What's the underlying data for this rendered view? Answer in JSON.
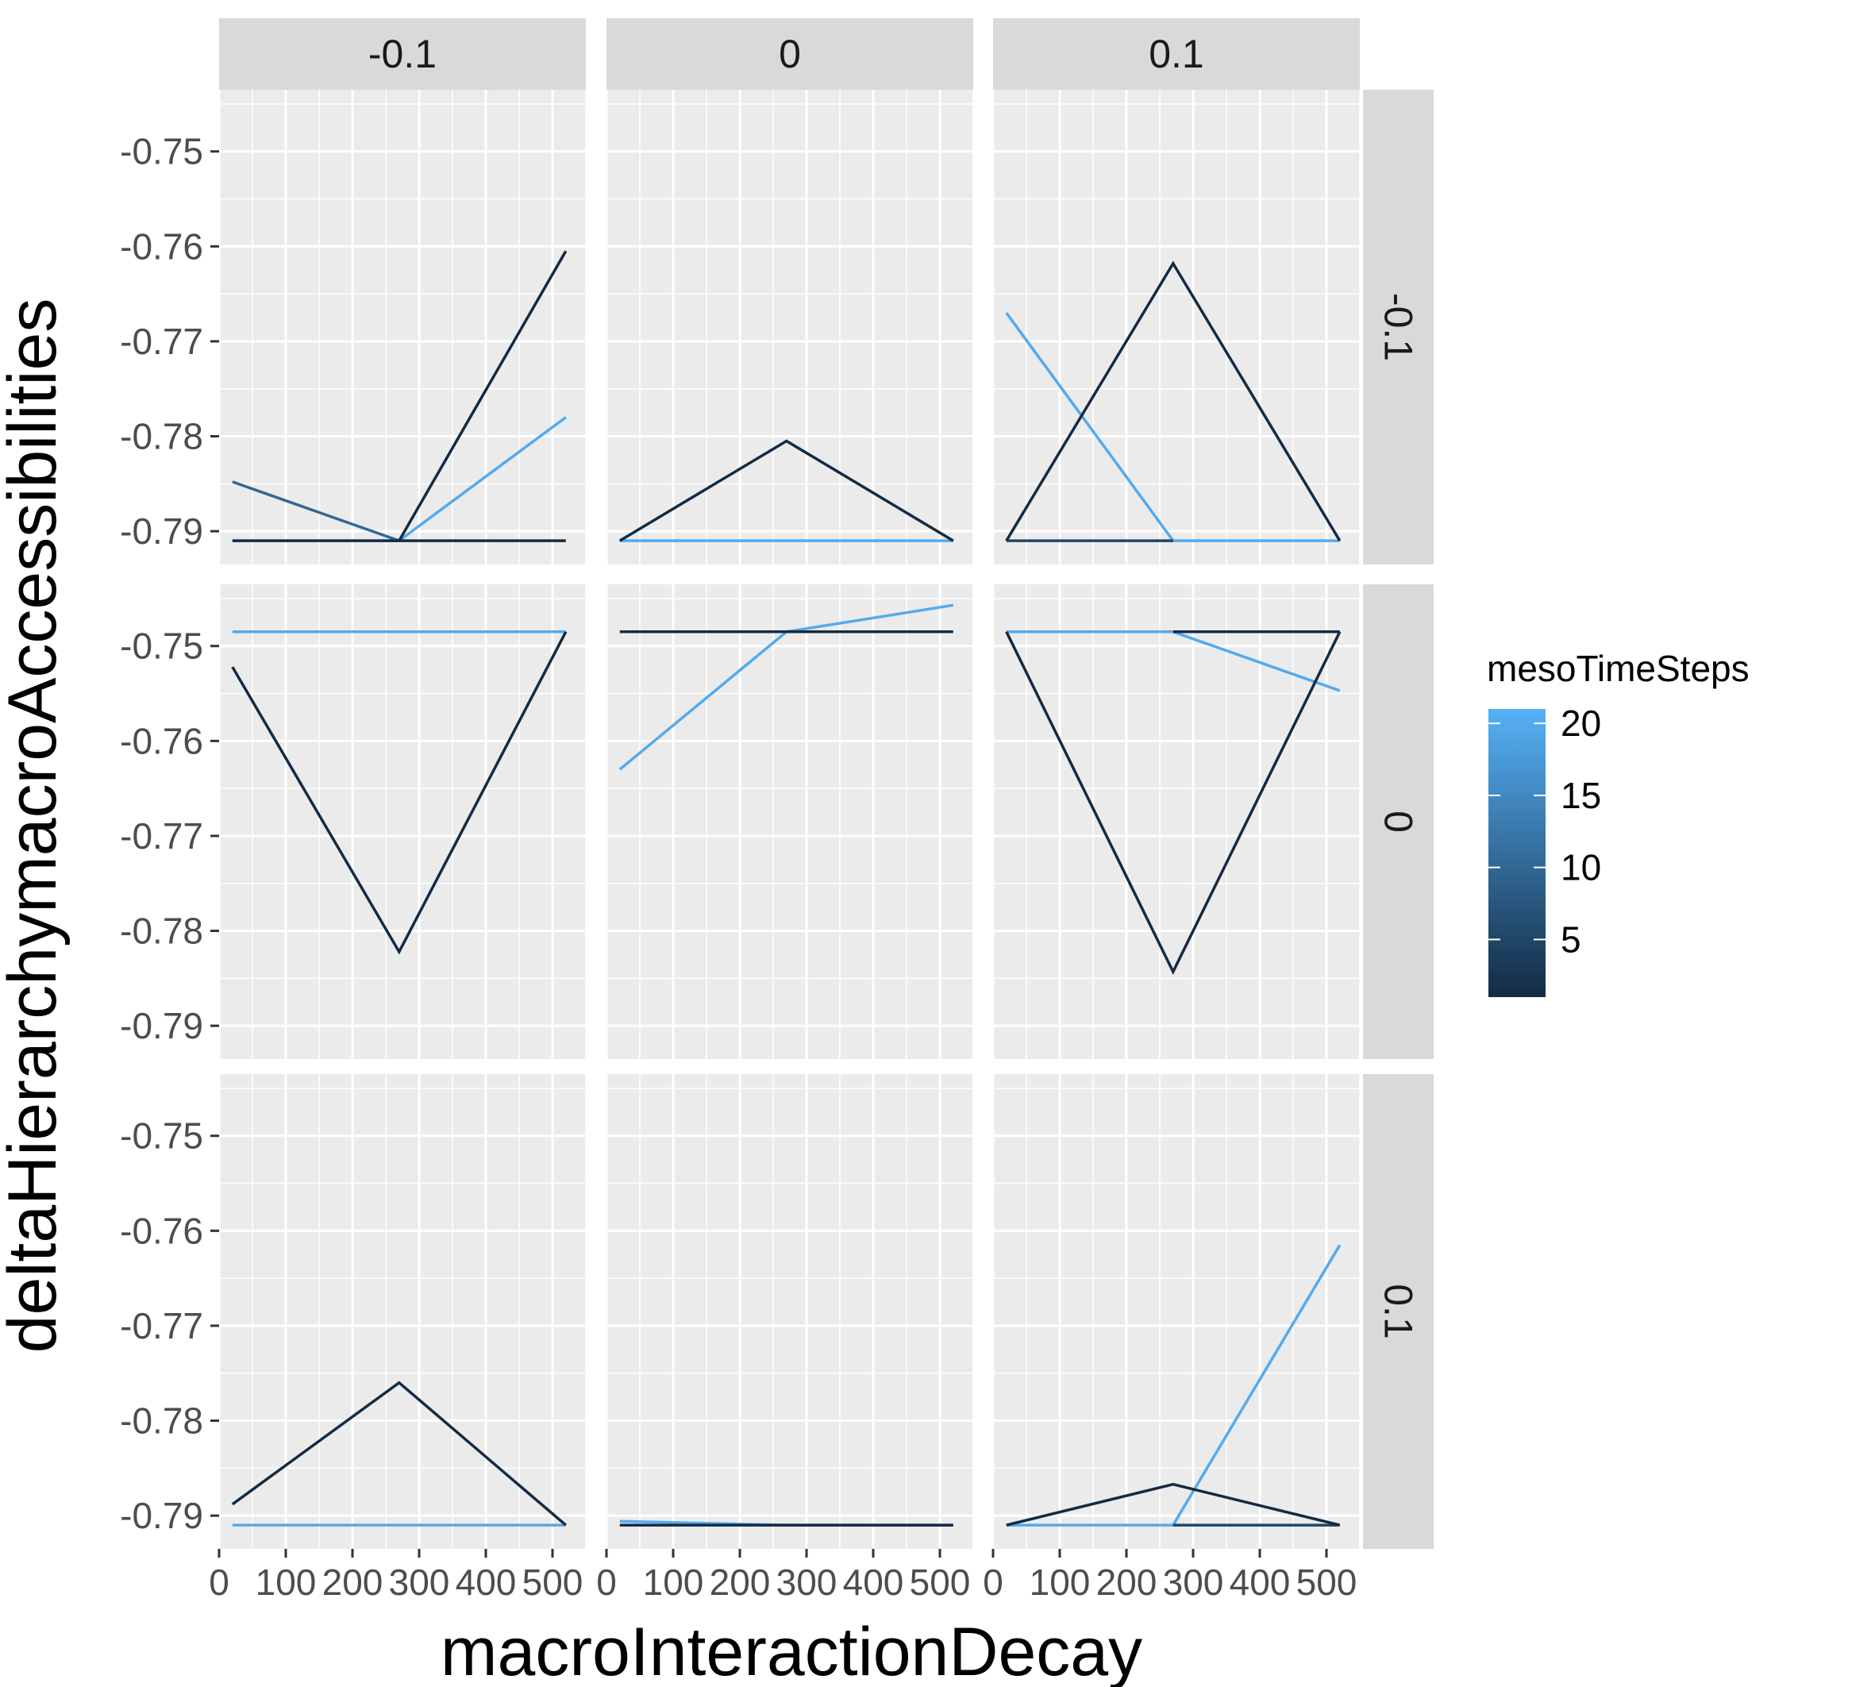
{
  "chart_data": {
    "type": "line",
    "title": "",
    "xlabel": "macroInteractionDecay",
    "ylabel": "deltaHierarchymacroAccessibilities",
    "facet_cols": [
      "-0.1",
      "0",
      "0.1"
    ],
    "facet_rows": [
      "-0.1",
      "0",
      "0.1"
    ],
    "xlim": [
      0,
      550
    ],
    "ylim": [
      -0.7935,
      -0.7435
    ],
    "x_ticks": [
      0,
      100,
      200,
      300,
      400,
      500
    ],
    "x_tick_labels": [
      "0",
      "100",
      "200",
      "300",
      "400",
      "500"
    ],
    "y_ticks": [
      -0.75,
      -0.76,
      -0.77,
      -0.78,
      -0.79
    ],
    "y_tick_labels": [
      "-0.75",
      "-0.76",
      "-0.77",
      "-0.78",
      "-0.79"
    ],
    "grid": true,
    "legend": {
      "title": "mesoTimeSteps",
      "position": "right",
      "type": "colorbar",
      "range": [
        1,
        21
      ],
      "ticks": [
        5,
        10,
        15,
        20
      ],
      "tick_labels": [
        "5",
        "10",
        "15",
        "20"
      ],
      "color_low": "#132B43",
      "color_high": "#56B1F7"
    },
    "panels": [
      {
        "row": "-0.1",
        "col": "-0.1",
        "series": [
          {
            "meso": 1,
            "x": [
              20,
              270,
              520
            ],
            "y": [
              -0.791,
              -0.791,
              -0.791
            ]
          },
          {
            "meso": 1,
            "x": [
              270,
              520
            ],
            "y": [
              -0.791,
              -0.7605
            ]
          },
          {
            "meso": 10,
            "x": [
              20,
              270
            ],
            "y": [
              -0.7848,
              -0.791
            ]
          },
          {
            "meso": 20,
            "x": [
              20,
              270,
              520
            ],
            "y": [
              -0.791,
              -0.791,
              -0.778
            ]
          }
        ]
      },
      {
        "row": "-0.1",
        "col": "0",
        "series": [
          {
            "meso": 1,
            "x": [
              20,
              270,
              520
            ],
            "y": [
              -0.791,
              -0.7805,
              -0.791
            ]
          },
          {
            "meso": 20,
            "x": [
              20,
              270,
              520
            ],
            "y": [
              -0.791,
              -0.791,
              -0.791
            ]
          }
        ]
      },
      {
        "row": "-0.1",
        "col": "0.1",
        "series": [
          {
            "meso": 1,
            "x": [
              20,
              270,
              520
            ],
            "y": [
              -0.791,
              -0.7618,
              -0.791
            ]
          },
          {
            "meso": 5,
            "x": [
              20,
              270
            ],
            "y": [
              -0.791,
              -0.791
            ]
          },
          {
            "meso": 20,
            "x": [
              20,
              270,
              520
            ],
            "y": [
              -0.767,
              -0.791,
              -0.791
            ]
          }
        ]
      },
      {
        "row": "0",
        "col": "-0.1",
        "series": [
          {
            "meso": 1,
            "x": [
              20,
              270,
              520
            ],
            "y": [
              -0.7522,
              -0.7822,
              -0.7485
            ]
          },
          {
            "meso": 20,
            "x": [
              20,
              270,
              520
            ],
            "y": [
              -0.7485,
              -0.7485,
              -0.7485
            ]
          }
        ]
      },
      {
        "row": "0",
        "col": "0",
        "series": [
          {
            "meso": 1,
            "x": [
              20,
              270,
              520
            ],
            "y": [
              -0.7485,
              -0.7485,
              -0.7485
            ]
          },
          {
            "meso": 20,
            "x": [
              20,
              270,
              520
            ],
            "y": [
              -0.763,
              -0.7485,
              -0.7457
            ]
          }
        ]
      },
      {
        "row": "0",
        "col": "0.1",
        "series": [
          {
            "meso": 1,
            "x": [
              20,
              270,
              520
            ],
            "y": [
              -0.7485,
              -0.7843,
              -0.7485
            ]
          },
          {
            "meso": 1,
            "x": [
              270,
              520
            ],
            "y": [
              -0.7485,
              -0.7485
            ]
          },
          {
            "meso": 20,
            "x": [
              20,
              270,
              520
            ],
            "y": [
              -0.7485,
              -0.7485,
              -0.7547
            ]
          }
        ]
      },
      {
        "row": "0.1",
        "col": "-0.1",
        "series": [
          {
            "meso": 1,
            "x": [
              20,
              270,
              520
            ],
            "y": [
              -0.7888,
              -0.776,
              -0.791
            ]
          },
          {
            "meso": 20,
            "x": [
              20,
              270,
              520
            ],
            "y": [
              -0.791,
              -0.791,
              -0.791
            ]
          }
        ]
      },
      {
        "row": "0.1",
        "col": "0",
        "series": [
          {
            "meso": 1,
            "x": [
              20,
              270,
              520
            ],
            "y": [
              -0.791,
              -0.791,
              -0.791
            ]
          },
          {
            "meso": 20,
            "x": [
              20,
              270,
              520
            ],
            "y": [
              -0.7906,
              -0.791,
              -0.791
            ]
          }
        ]
      },
      {
        "row": "0.1",
        "col": "0.1",
        "series": [
          {
            "meso": 1,
            "x": [
              20,
              270,
              520
            ],
            "y": [
              -0.791,
              -0.7867,
              -0.791
            ]
          },
          {
            "meso": 5,
            "x": [
              270,
              520
            ],
            "y": [
              -0.791,
              -0.791
            ]
          },
          {
            "meso": 20,
            "x": [
              20,
              270,
              520
            ],
            "y": [
              -0.791,
              -0.791,
              -0.7615
            ]
          }
        ]
      }
    ]
  }
}
